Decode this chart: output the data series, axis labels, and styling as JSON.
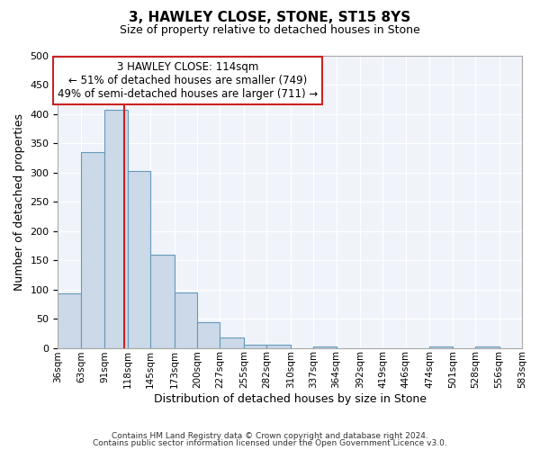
{
  "title": "3, HAWLEY CLOSE, STONE, ST15 8YS",
  "subtitle": "Size of property relative to detached houses in Stone",
  "xlabel": "Distribution of detached houses by size in Stone",
  "ylabel": "Number of detached properties",
  "bar_color": "#ccd9e8",
  "bar_edge_color": "#6699bb",
  "bin_edges": [
    36,
    63,
    91,
    118,
    145,
    173,
    200,
    227,
    255,
    282,
    310,
    337,
    364,
    392,
    419,
    446,
    474,
    501,
    528,
    556,
    583
  ],
  "bar_heights": [
    93,
    335,
    407,
    303,
    160,
    95,
    44,
    18,
    5,
    5,
    0,
    3,
    0,
    0,
    0,
    0,
    3,
    0,
    3,
    0
  ],
  "tick_labels": [
    "36sqm",
    "63sqm",
    "91sqm",
    "118sqm",
    "145sqm",
    "173sqm",
    "200sqm",
    "227sqm",
    "255sqm",
    "282sqm",
    "310sqm",
    "337sqm",
    "364sqm",
    "392sqm",
    "419sqm",
    "446sqm",
    "474sqm",
    "501sqm",
    "528sqm",
    "556sqm",
    "583sqm"
  ],
  "ylim": [
    0,
    500
  ],
  "yticks": [
    0,
    50,
    100,
    150,
    200,
    250,
    300,
    350,
    400,
    450,
    500
  ],
  "property_line_x": 114,
  "property_line_color": "#cc2222",
  "annotation_title": "3 HAWLEY CLOSE: 114sqm",
  "annotation_line1": "← 51% of detached houses are smaller (749)",
  "annotation_line2": "49% of semi-detached houses are larger (711) →",
  "annotation_box_facecolor": "#ffffff",
  "annotation_box_edgecolor": "#cc2222",
  "footer1": "Contains HM Land Registry data © Crown copyright and database right 2024.",
  "footer2": "Contains public sector information licensed under the Open Government Licence v3.0.",
  "bg_color": "#ffffff",
  "plot_bg_color": "#f0f4fa",
  "grid_color": "#ffffff",
  "title_fontsize": 11,
  "subtitle_fontsize": 9,
  "xlabel_fontsize": 9,
  "ylabel_fontsize": 9,
  "tick_fontsize": 7.5,
  "ytick_fontsize": 8,
  "annotation_fontsize": 8.5,
  "footer_fontsize": 6.5
}
